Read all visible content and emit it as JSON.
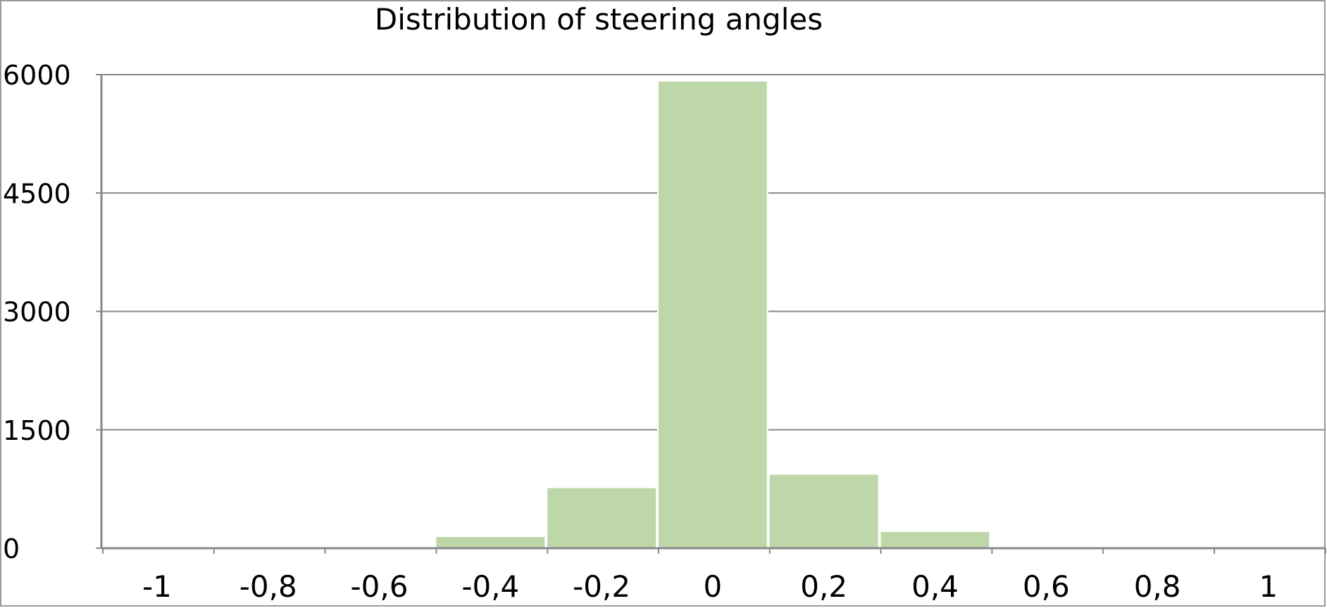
{
  "chart_data": {
    "type": "bar",
    "title": "Distribution of steering angles",
    "xlabel": "",
    "ylabel": "",
    "categories": [
      "-1",
      "-0,8",
      "-0,6",
      "-0,4",
      "-0,2",
      "0",
      "0,2",
      "0,4",
      "0,6",
      "0,8",
      "1"
    ],
    "values": [
      0,
      0,
      0,
      150,
      770,
      5920,
      940,
      215,
      0,
      0,
      0
    ],
    "y_ticks": [
      "0",
      "1500",
      "3000",
      "4500",
      "6000"
    ],
    "ylim": [
      0,
      6000
    ],
    "grid": "horizontal",
    "legend": "none",
    "colors": {
      "bar": "#bed7a8",
      "bar_edge": "#ffffff",
      "grid": "#888888",
      "axis": "#888888",
      "frame": "#9a9a9a"
    }
  }
}
